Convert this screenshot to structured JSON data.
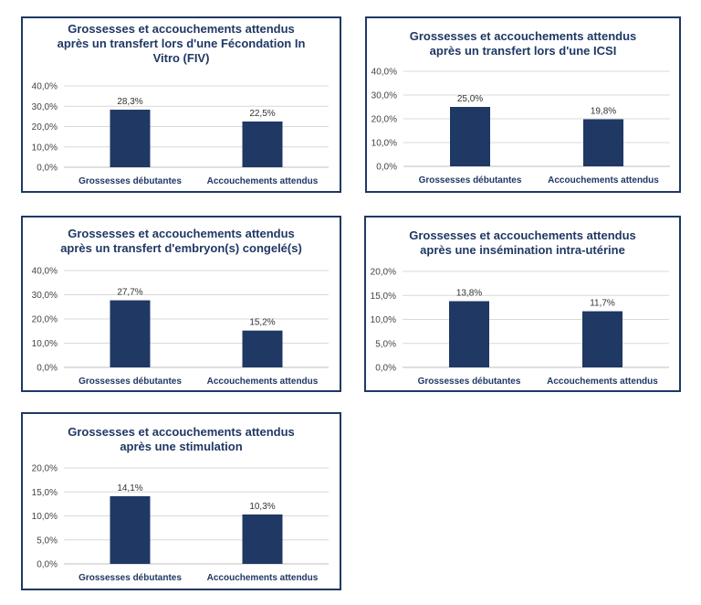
{
  "colors": {
    "bar": "#1f3864",
    "border": "#1f3864",
    "grid": "#d9d9d9",
    "title": "#1f3864"
  },
  "chart_data": [
    {
      "type": "bar",
      "title_lines": [
        "Grossesses et accouchements attendus",
        "après un transfert lors d'une Fécondation In",
        "Vitro (FIV)"
      ],
      "categories": [
        "Grossesses débutantes",
        "Accouchements attendus"
      ],
      "values": [
        28.3,
        22.5
      ],
      "value_labels": [
        "28,3%",
        "22,5%"
      ],
      "ylim": [
        0,
        40
      ],
      "yticks": [
        "0,0%",
        "10,0%",
        "20,0%",
        "30,0%",
        "40,0%"
      ],
      "grid": true
    },
    {
      "type": "bar",
      "title_lines": [
        "Grossesses et accouchements attendus",
        "après un transfert lors d'une ICSI"
      ],
      "categories": [
        "Grossesses débutantes",
        "Accouchements attendus"
      ],
      "values": [
        25.0,
        19.8
      ],
      "value_labels": [
        "25,0%",
        "19,8%"
      ],
      "ylim": [
        0,
        40
      ],
      "yticks": [
        "0,0%",
        "10,0%",
        "20,0%",
        "30,0%",
        "40,0%"
      ],
      "grid": true
    },
    {
      "type": "bar",
      "title_lines": [
        "Grossesses et accouchements attendus",
        "après un transfert d'embryon(s) congelé(s)"
      ],
      "categories": [
        "Grossesses débutantes",
        "Accouchements attendus"
      ],
      "values": [
        27.7,
        15.2
      ],
      "value_labels": [
        "27,7%",
        "15,2%"
      ],
      "ylim": [
        0,
        40
      ],
      "yticks": [
        "0,0%",
        "10,0%",
        "20,0%",
        "30,0%",
        "40,0%"
      ],
      "grid": true
    },
    {
      "type": "bar",
      "title_lines": [
        "Grossesses et accouchements attendus",
        "après une insémination intra-utérine"
      ],
      "categories": [
        "Grossesses débutantes",
        "Accouchements attendus"
      ],
      "values": [
        13.8,
        11.7
      ],
      "value_labels": [
        "13,8%",
        "11,7%"
      ],
      "ylim": [
        0,
        20
      ],
      "yticks": [
        "0,0%",
        "5,0%",
        "10,0%",
        "15,0%",
        "20,0%"
      ],
      "grid": true
    },
    {
      "type": "bar",
      "title_lines": [
        "Grossesses et accouchements attendus",
        "après une stimulation"
      ],
      "categories": [
        "Grossesses débutantes",
        "Accouchements attendus"
      ],
      "values": [
        14.1,
        10.3
      ],
      "value_labels": [
        "14,1%",
        "10,3%"
      ],
      "ylim": [
        0,
        20
      ],
      "yticks": [
        "0,0%",
        "5,0%",
        "10,0%",
        "15,0%",
        "20,0%"
      ],
      "grid": true
    }
  ]
}
